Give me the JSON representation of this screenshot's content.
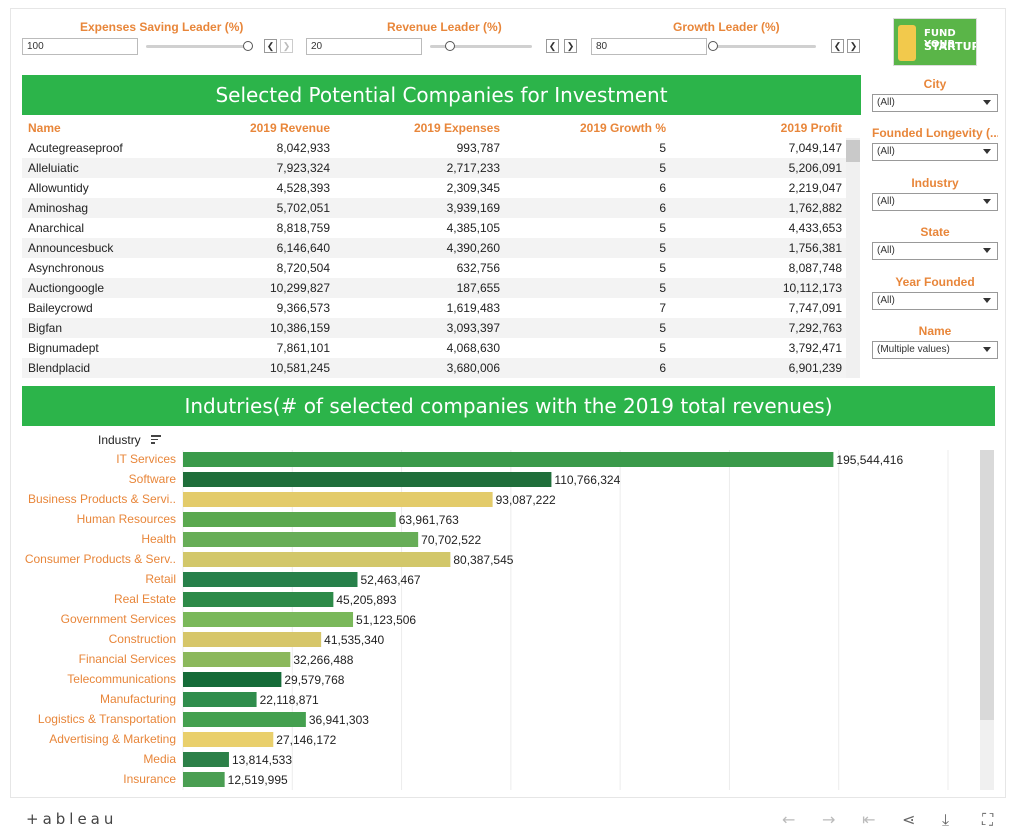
{
  "params": [
    {
      "title": "Expenses Saving Leader (%)",
      "value": "100"
    },
    {
      "title": "Revenue Leader (%)",
      "value": "20"
    },
    {
      "title": "Growth Leader (%)",
      "value": "80"
    }
  ],
  "stepper": {
    "prev": "❮",
    "next": "❯"
  },
  "logo": {
    "line1": "FUND YOUR",
    "line2": "STARTUP"
  },
  "table": {
    "title": "Selected Potential Companies for Investment",
    "columns": [
      "Name",
      "2019 Revenue",
      "2019 Expenses",
      "2019 Growth %",
      "2019 Profit"
    ],
    "rows": [
      [
        "Acutegreaseproof",
        "8,042,933",
        "993,787",
        "5",
        "7,049,147"
      ],
      [
        "Alleluiatic",
        "7,923,324",
        "2,717,233",
        "5",
        "5,206,091"
      ],
      [
        "Allowuntidy",
        "4,528,393",
        "2,309,345",
        "6",
        "2,219,047"
      ],
      [
        "Aminoshag",
        "5,702,051",
        "3,939,169",
        "6",
        "1,762,882"
      ],
      [
        "Anarchical",
        "8,818,759",
        "4,385,105",
        "5",
        "4,433,653"
      ],
      [
        "Announcesbuck",
        "6,146,640",
        "4,390,260",
        "5",
        "1,756,381"
      ],
      [
        "Asynchronous",
        "8,720,504",
        "632,756",
        "5",
        "8,087,748"
      ],
      [
        "Auctiongoogle",
        "10,299,827",
        "187,655",
        "5",
        "10,112,173"
      ],
      [
        "Baileycrowd",
        "9,366,573",
        "1,619,483",
        "7",
        "7,747,091"
      ],
      [
        "Bigfan",
        "10,386,159",
        "3,093,397",
        "5",
        "7,292,763"
      ],
      [
        "Bignumadept",
        "7,861,101",
        "4,068,630",
        "5",
        "3,792,471"
      ],
      [
        "Blendplacid",
        "10,581,245",
        "3,680,006",
        "6",
        "6,901,239"
      ]
    ]
  },
  "filters": [
    {
      "title": "City",
      "value": "(All)"
    },
    {
      "title": "Founded Longevity (...",
      "value": "(All)"
    },
    {
      "title": "Industry",
      "value": "(All)"
    },
    {
      "title": "State",
      "value": "(All)"
    },
    {
      "title": "Year Founded",
      "value": "(All)"
    },
    {
      "title": "Name",
      "value": "(Multiple values)"
    }
  ],
  "chart_header": "Indutries(# of selected companies with the 2019 total revenues)",
  "chart_data": {
    "type": "bar",
    "orientation": "horizontal",
    "axis_title": "Industry",
    "xlim": [
      0,
      230000000
    ],
    "grid": true,
    "categories": [
      "IT Services",
      "Software",
      "Business Products & Servi..",
      "Human Resources",
      "Health",
      "Consumer Products & Serv..",
      "Retail",
      "Real Estate",
      "Government Services",
      "Construction",
      "Financial Services",
      "Telecommunications",
      "Manufacturing",
      "Logistics & Transportation",
      "Advertising & Marketing",
      "Media",
      "Insurance"
    ],
    "values": [
      195544416,
      110766324,
      93087222,
      63961763,
      70702522,
      80387545,
      52463467,
      45205893,
      51123506,
      41535340,
      32266488,
      29579768,
      22118871,
      36941303,
      27146172,
      13814533,
      12519995
    ],
    "labels": [
      "195,544,416",
      "110,766,324",
      "93,087,222",
      "63,961,763",
      "70,702,522",
      "80,387,545",
      "52,463,467",
      "45,205,893",
      "51,123,506",
      "41,535,340",
      "32,266,488",
      "29,579,768",
      "22,118,871",
      "36,941,303",
      "27,146,172",
      "13,814,533",
      "12,519,995"
    ],
    "colors": [
      "#3a9a4a",
      "#1f6e3a",
      "#e3cb6a",
      "#5aa84f",
      "#67ad57",
      "#d2c76a",
      "#27804a",
      "#2d8a48",
      "#7ab85a",
      "#d6c669",
      "#8bb85c",
      "#156b38",
      "#2f8d4c",
      "#44a04f",
      "#e9cf6b",
      "#2c8048",
      "#4a9e52"
    ]
  },
  "footer": {
    "brand": "+ableau",
    "icons": [
      "back-icon",
      "forward-icon",
      "revert-icon",
      "share-icon",
      "download-icon",
      "fullscreen-icon"
    ]
  }
}
